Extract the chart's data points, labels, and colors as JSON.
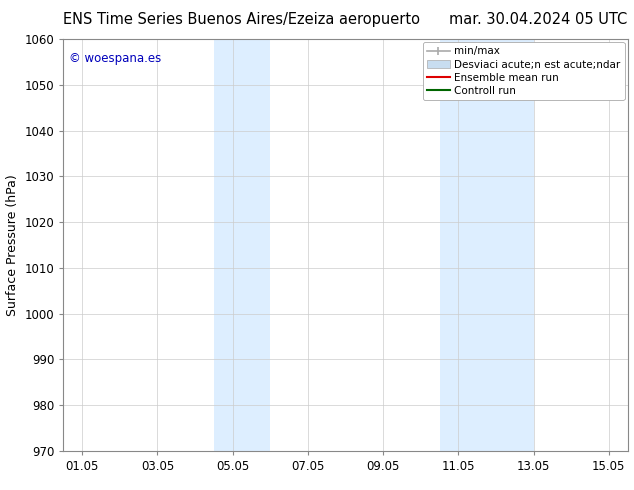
{
  "title_left": "ENS Time Series Buenos Aires/Ezeiza aeropuerto",
  "title_right": "mar. 30.04.2024 05 UTC",
  "ylabel": "Surface Pressure (hPa)",
  "ylim": [
    970,
    1060
  ],
  "yticks": [
    970,
    980,
    990,
    1000,
    1010,
    1020,
    1030,
    1040,
    1050,
    1060
  ],
  "xtick_labels": [
    "01.05",
    "03.05",
    "05.05",
    "07.05",
    "09.05",
    "11.05",
    "13.05",
    "15.05"
  ],
  "xtick_positions": [
    1,
    3,
    5,
    7,
    9,
    11,
    13,
    15
  ],
  "xlim": [
    0.5,
    15.5
  ],
  "shaded_band1": {
    "start": 4.5,
    "end": 6.0,
    "color": "#ddeeff"
  },
  "shaded_band2": {
    "start": 10.5,
    "end": 13.0,
    "color": "#ddeeff"
  },
  "watermark_text": "© woespana.es",
  "watermark_color": "#0000bb",
  "legend_entries": [
    {
      "label": "min/max",
      "color": "#aaaaaa",
      "lw": 1.5
    },
    {
      "label": "Desviaci acute;n est acute;ndar",
      "color": "#c8ddf0",
      "lw": 8
    },
    {
      "label": "Ensemble mean run",
      "color": "#dd0000",
      "lw": 1.5
    },
    {
      "label": "Controll run",
      "color": "#006600",
      "lw": 1.5
    }
  ],
  "bg_color": "#ffffff",
  "grid_color": "#cccccc",
  "title_fontsize": 10.5,
  "axis_label_fontsize": 9,
  "tick_fontsize": 8.5,
  "watermark_fontsize": 8.5,
  "legend_fontsize": 7.5
}
